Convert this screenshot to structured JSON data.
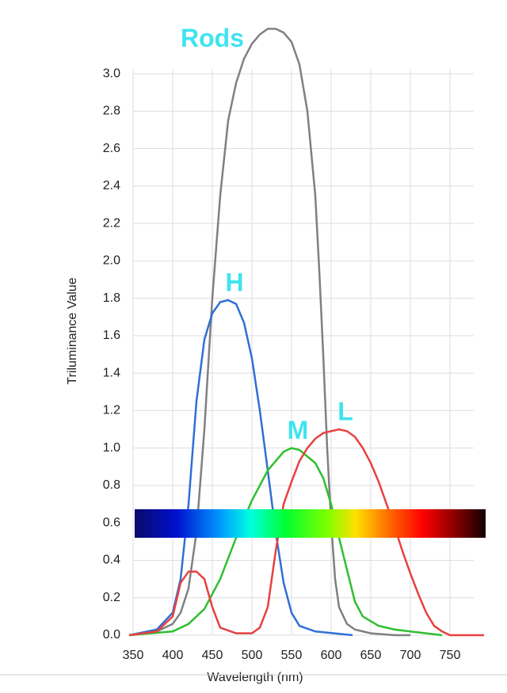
{
  "chart_data": {
    "type": "line",
    "x_label": "Wavelength (nm)",
    "y_label": "Triluminance Value",
    "label_color": "#3fe3ef",
    "grid": true,
    "xlim": [
      345,
      795
    ],
    "ylim": [
      0,
      3.25
    ],
    "xticks": [
      350,
      400,
      450,
      500,
      550,
      600,
      650,
      700,
      750
    ],
    "yticks": [
      {
        "value": 0,
        "label": "0.0"
      },
      0.2,
      0.4,
      0.6,
      0.8,
      {
        "value": 1,
        "label": "1.0"
      },
      1.2,
      1.4,
      1.6,
      1.8,
      {
        "value": 2,
        "label": "2.0"
      },
      2.2,
      2.4,
      2.6,
      2.8,
      {
        "value": 3,
        "label": "3.0"
      }
    ],
    "series": [
      {
        "name": "Rods",
        "color": "#808080",
        "x": [
          345,
          380,
          400,
          410,
          420,
          430,
          440,
          450,
          460,
          470,
          480,
          490,
          500,
          510,
          520,
          530,
          540,
          550,
          560,
          570,
          580,
          585,
          590,
          595,
          600,
          605,
          610,
          620,
          630,
          650,
          680,
          700
        ],
        "values": [
          0,
          0.02,
          0.06,
          0.12,
          0.25,
          0.55,
          1.1,
          1.8,
          2.35,
          2.75,
          2.95,
          3.08,
          3.16,
          3.21,
          3.24,
          3.24,
          3.22,
          3.17,
          3.05,
          2.8,
          2.35,
          1.95,
          1.5,
          1.0,
          0.6,
          0.3,
          0.15,
          0.06,
          0.03,
          0.01,
          0,
          0
        ]
      },
      {
        "name": "H",
        "color": "#2f6fd6",
        "x": [
          345,
          380,
          400,
          410,
          420,
          430,
          440,
          450,
          460,
          470,
          480,
          490,
          500,
          510,
          520,
          530,
          540,
          550,
          560,
          580,
          627
        ],
        "values": [
          0,
          0.03,
          0.12,
          0.3,
          0.7,
          1.25,
          1.58,
          1.72,
          1.78,
          1.79,
          1.77,
          1.67,
          1.48,
          1.2,
          0.88,
          0.55,
          0.28,
          0.12,
          0.05,
          0.02,
          0
        ]
      },
      {
        "name": "M",
        "color": "#2fbf2f",
        "x": [
          345,
          400,
          420,
          440,
          460,
          480,
          500,
          520,
          540,
          550,
          560,
          580,
          590,
          600,
          610,
          620,
          630,
          640,
          660,
          680,
          720,
          740
        ],
        "values": [
          0,
          0.02,
          0.06,
          0.14,
          0.3,
          0.52,
          0.72,
          0.88,
          0.98,
          1.0,
          0.99,
          0.92,
          0.84,
          0.7,
          0.52,
          0.35,
          0.18,
          0.1,
          0.05,
          0.03,
          0.01,
          0
        ]
      },
      {
        "name": "L",
        "color": "#e84040",
        "x": [
          345,
          380,
          400,
          410,
          420,
          430,
          440,
          450,
          460,
          480,
          500,
          510,
          520,
          530,
          540,
          550,
          560,
          570,
          580,
          590,
          600,
          610,
          620,
          630,
          640,
          650,
          660,
          670,
          680,
          690,
          700,
          710,
          720,
          730,
          740,
          750,
          793
        ],
        "values": [
          0,
          0.02,
          0.1,
          0.28,
          0.34,
          0.34,
          0.3,
          0.15,
          0.04,
          0.01,
          0.01,
          0.04,
          0.15,
          0.45,
          0.7,
          0.82,
          0.93,
          1.0,
          1.05,
          1.08,
          1.09,
          1.1,
          1.09,
          1.06,
          1.0,
          0.92,
          0.82,
          0.7,
          0.58,
          0.45,
          0.33,
          0.22,
          0.12,
          0.05,
          0.02,
          0,
          0
        ]
      }
    ]
  }
}
